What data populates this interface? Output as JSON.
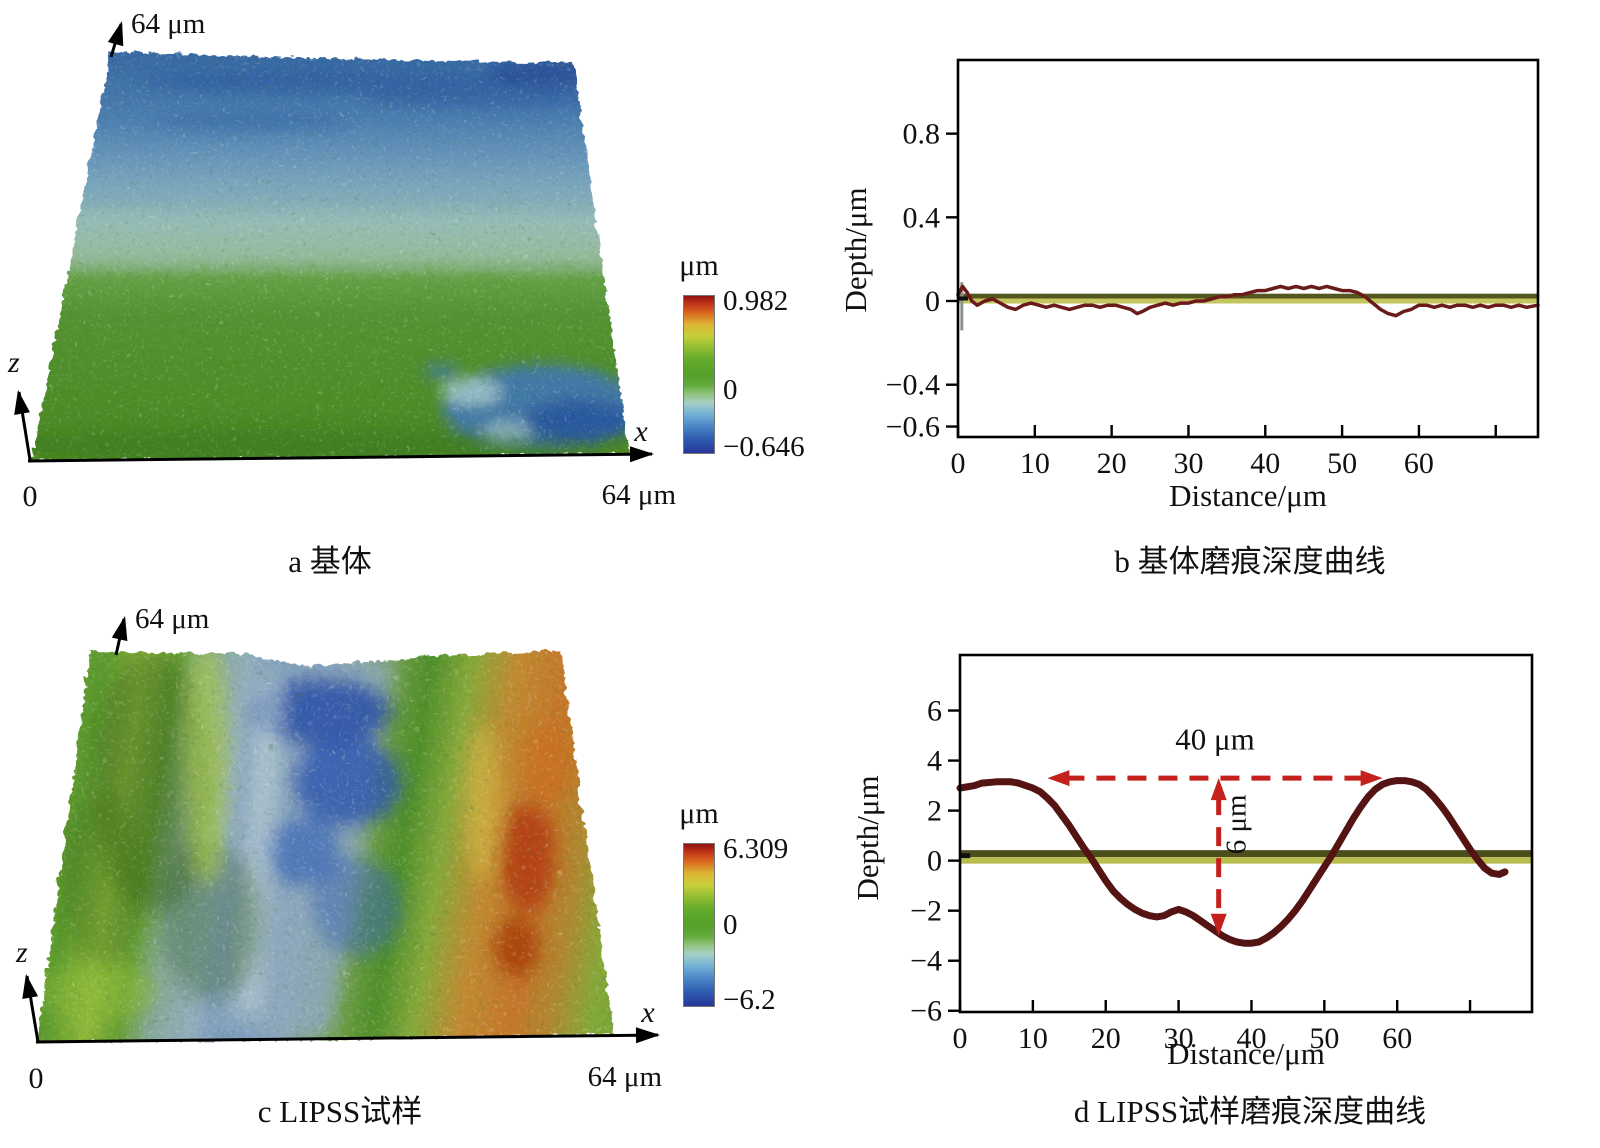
{
  "figure": {
    "panel_a": {
      "caption": "a 基体",
      "top_scale_label": "64 μm",
      "z_axis_label": "z",
      "x_axis_label": "x",
      "x_axis_end_label": "64 μm",
      "origin_label": "0"
    },
    "panel_c": {
      "caption": "c LIPSS试样",
      "top_scale_label": "64 μm",
      "z_axis_label": "z",
      "x_axis_label": "x",
      "x_axis_end_label": "64 μm",
      "origin_label": "0"
    }
  },
  "colorbars": {
    "gradient": [
      "#8f1010 0%",
      "#c23418 5%",
      "#d96a20 11%",
      "#ddb434 18%",
      "#c9cf3a 25%",
      "#97bf33 32%",
      "#66ac2c 40%",
      "#53a02a 50%",
      "#64ab3e 57%",
      "#94c584 63%",
      "#a6cfc4 68%",
      "#74b2d6 75%",
      "#4a86c6 83%",
      "#2f5cb0 91%",
      "#27379a 100%"
    ],
    "a": {
      "title": "μm",
      "max": "0.982",
      "zero": "0",
      "min": "−0.646",
      "zero_top_pct": 60
    },
    "c": {
      "title": "μm",
      "max": "6.309",
      "zero": "0",
      "min": "−6.2",
      "zero_top_pct": 50
    }
  },
  "chart_data": [
    {
      "id": "b",
      "type": "line",
      "title": "b 基体磨痕深度曲线",
      "xlabel": "Distance/μm",
      "ylabel": "Depth/μm",
      "xlim": [
        0,
        75.5
      ],
      "ylim": [
        -0.65,
        1.152
      ],
      "grid": false,
      "legend": "none",
      "frame_color": "#000000",
      "xticks": [
        {
          "v": 0,
          "label": "0"
        },
        {
          "v": 10,
          "label": "10"
        },
        {
          "v": 20,
          "label": "20"
        },
        {
          "v": 30,
          "label": "30"
        },
        {
          "v": 40,
          "label": "40"
        },
        {
          "v": 50,
          "label": "50"
        },
        {
          "v": 60,
          "label": "60"
        },
        {
          "v": 70,
          "label": ""
        }
      ],
      "yticks": [
        {
          "v": 0.8,
          "label": "0.8"
        },
        {
          "v": 0.4,
          "label": "0.4"
        },
        {
          "v": 0,
          "label": "0"
        },
        {
          "v": -0.4,
          "label": "−0.4"
        },
        {
          "v": -0.6,
          "label": "−0.6"
        }
      ],
      "baseline_bands": [
        {
          "y1": 0.035,
          "y2": 0.012,
          "color": "#54571d"
        },
        {
          "y1": 0.012,
          "y2": -0.012,
          "color": "#c3c65f"
        }
      ],
      "cursor_marks": [
        {
          "type": "v",
          "x": 0.5,
          "y1": 0.09,
          "y2": -0.14,
          "color": "#8f8f8f",
          "w": 3
        },
        {
          "type": "h",
          "x1": 0,
          "x2": 1.3,
          "y": 0.012,
          "color": "#111111",
          "w": 4
        }
      ],
      "series": [
        {
          "name": "substrate wear depth profile",
          "color": "#6b1a1a",
          "width": 3.5,
          "points": [
            [
              0,
              0.03
            ],
            [
              0.6,
              0.07
            ],
            [
              1.2,
              0.04
            ],
            [
              1.8,
              0.0
            ],
            [
              2.5,
              -0.02
            ],
            [
              3.5,
              0.0
            ],
            [
              4.5,
              0.01
            ],
            [
              5.5,
              -0.01
            ],
            [
              6.5,
              -0.03
            ],
            [
              7.5,
              -0.04
            ],
            [
              8.5,
              -0.02
            ],
            [
              9.5,
              -0.01
            ],
            [
              10.5,
              -0.02
            ],
            [
              11.5,
              -0.03
            ],
            [
              12.5,
              -0.02
            ],
            [
              13.5,
              -0.03
            ],
            [
              14.5,
              -0.04
            ],
            [
              15.5,
              -0.03
            ],
            [
              16.5,
              -0.02
            ],
            [
              17.5,
              -0.02
            ],
            [
              18.5,
              -0.03
            ],
            [
              19.5,
              -0.02
            ],
            [
              20.5,
              -0.02
            ],
            [
              21.5,
              -0.03
            ],
            [
              22.5,
              -0.04
            ],
            [
              23.3,
              -0.06
            ],
            [
              24,
              -0.05
            ],
            [
              25,
              -0.03
            ],
            [
              26,
              -0.02
            ],
            [
              27,
              -0.01
            ],
            [
              28,
              -0.02
            ],
            [
              29,
              -0.01
            ],
            [
              30,
              -0.01
            ],
            [
              31,
              0.0
            ],
            [
              32,
              0.0
            ],
            [
              33,
              0.01
            ],
            [
              34,
              0.02
            ],
            [
              35,
              0.02
            ],
            [
              36,
              0.03
            ],
            [
              37,
              0.03
            ],
            [
              38,
              0.04
            ],
            [
              39,
              0.05
            ],
            [
              40,
              0.05
            ],
            [
              41,
              0.06
            ],
            [
              42,
              0.07
            ],
            [
              43,
              0.06
            ],
            [
              44,
              0.07
            ],
            [
              45,
              0.06
            ],
            [
              46,
              0.07
            ],
            [
              47,
              0.06
            ],
            [
              48,
              0.07
            ],
            [
              49,
              0.06
            ],
            [
              50,
              0.05
            ],
            [
              51,
              0.05
            ],
            [
              52,
              0.04
            ],
            [
              53,
              0.02
            ],
            [
              54,
              -0.01
            ],
            [
              55,
              -0.04
            ],
            [
              56,
              -0.06
            ],
            [
              57,
              -0.07
            ],
            [
              58,
              -0.05
            ],
            [
              59,
              -0.04
            ],
            [
              60,
              -0.02
            ],
            [
              61,
              -0.02
            ],
            [
              62,
              -0.03
            ],
            [
              63,
              -0.02
            ],
            [
              64,
              -0.03
            ],
            [
              65,
              -0.02
            ],
            [
              66,
              -0.02
            ],
            [
              67,
              -0.03
            ],
            [
              68,
              -0.02
            ],
            [
              69,
              -0.03
            ],
            [
              70,
              -0.02
            ],
            [
              71,
              -0.02
            ],
            [
              72,
              -0.03
            ],
            [
              73,
              -0.02
            ],
            [
              74,
              -0.03
            ],
            [
              75.5,
              -0.02
            ]
          ]
        }
      ]
    },
    {
      "id": "d",
      "type": "line",
      "title": "d LIPSS试样磨痕深度曲线",
      "xlabel": "Distance/μm",
      "ylabel": "Depth/μm",
      "xlim": [
        0,
        78.5
      ],
      "ylim": [
        -6.05,
        8.22
      ],
      "grid": false,
      "legend": "none",
      "frame_color": "#000000",
      "xticks": [
        {
          "v": 0,
          "label": "0"
        },
        {
          "v": 10,
          "label": "10"
        },
        {
          "v": 20,
          "label": "20"
        },
        {
          "v": 30,
          "label": "30"
        },
        {
          "v": 40,
          "label": "40"
        },
        {
          "v": 50,
          "label": "50"
        },
        {
          "v": 60,
          "label": "60"
        },
        {
          "v": 70,
          "label": ""
        }
      ],
      "yticks": [
        {
          "v": 6,
          "label": "6"
        },
        {
          "v": 4,
          "label": "4"
        },
        {
          "v": 2,
          "label": "2"
        },
        {
          "v": 0,
          "label": "0"
        },
        {
          "v": -2,
          "label": "−2"
        },
        {
          "v": -4,
          "label": "−4"
        },
        {
          "v": -6,
          "label": "−6"
        }
      ],
      "baseline_bands": [
        {
          "y1": 0.42,
          "y2": 0.14,
          "color": "#4c4f1c"
        },
        {
          "y1": 0.14,
          "y2": -0.12,
          "color": "#b9bd4f"
        }
      ],
      "cursor_marks": [
        {
          "type": "h",
          "x1": 0,
          "x2": 1.4,
          "y": 0.2,
          "color": "#111111",
          "w": 5
        }
      ],
      "series": [
        {
          "name": "LIPSS wear depth profile",
          "color": "#541414",
          "width": 7,
          "points": [
            [
              0,
              2.9
            ],
            [
              2,
              3.0
            ],
            [
              3,
              3.1
            ],
            [
              5,
              3.15
            ],
            [
              7,
              3.15
            ],
            [
              8,
              3.1
            ],
            [
              9,
              3.0
            ],
            [
              10,
              2.9
            ],
            [
              11,
              2.75
            ],
            [
              12,
              2.5
            ],
            [
              13,
              2.2
            ],
            [
              14,
              1.8
            ],
            [
              15,
              1.4
            ],
            [
              16,
              0.95
            ],
            [
              17,
              0.5
            ],
            [
              18,
              0.1
            ],
            [
              19,
              -0.35
            ],
            [
              20,
              -0.8
            ],
            [
              21,
              -1.2
            ],
            [
              22,
              -1.5
            ],
            [
              23,
              -1.75
            ],
            [
              24,
              -1.95
            ],
            [
              25,
              -2.1
            ],
            [
              26,
              -2.2
            ],
            [
              27,
              -2.25
            ],
            [
              28,
              -2.2
            ],
            [
              29,
              -2.05
            ],
            [
              30,
              -1.95
            ],
            [
              31,
              -2.05
            ],
            [
              32,
              -2.2
            ],
            [
              33,
              -2.4
            ],
            [
              34,
              -2.6
            ],
            [
              35,
              -2.8
            ],
            [
              36,
              -3.0
            ],
            [
              37,
              -3.15
            ],
            [
              38,
              -3.25
            ],
            [
              39,
              -3.3
            ],
            [
              40,
              -3.3
            ],
            [
              41,
              -3.25
            ],
            [
              42,
              -3.1
            ],
            [
              43,
              -2.9
            ],
            [
              44,
              -2.65
            ],
            [
              45,
              -2.35
            ],
            [
              46,
              -2.0
            ],
            [
              47,
              -1.6
            ],
            [
              48,
              -1.15
            ],
            [
              49,
              -0.7
            ],
            [
              50,
              -0.25
            ],
            [
              51,
              0.2
            ],
            [
              52,
              0.7
            ],
            [
              53,
              1.2
            ],
            [
              54,
              1.7
            ],
            [
              55,
              2.15
            ],
            [
              56,
              2.55
            ],
            [
              57,
              2.85
            ],
            [
              58,
              3.05
            ],
            [
              59,
              3.15
            ],
            [
              60,
              3.2
            ],
            [
              61,
              3.2
            ],
            [
              62,
              3.15
            ],
            [
              63,
              3.05
            ],
            [
              64,
              2.85
            ],
            [
              65,
              2.55
            ],
            [
              66,
              2.2
            ],
            [
              67,
              1.8
            ],
            [
              68,
              1.35
            ],
            [
              69,
              0.9
            ],
            [
              70,
              0.45
            ],
            [
              71,
              0.05
            ],
            [
              72,
              -0.3
            ],
            [
              73,
              -0.5
            ],
            [
              74,
              -0.55
            ],
            [
              74.8,
              -0.45
            ]
          ]
        }
      ],
      "annotations": {
        "color": "#c4201c",
        "h_arrow": {
          "x1": 12,
          "x2": 58,
          "y": 3.3
        },
        "h_label": {
          "text": "40 μm",
          "x": 35,
          "y": 4.45
        },
        "v_arrow": {
          "x": 35.5,
          "y1": 3.3,
          "y2": -3.0
        },
        "v_label": {
          "text": "6 μm",
          "x": 39.2,
          "y": 1.45
        }
      }
    }
  ]
}
